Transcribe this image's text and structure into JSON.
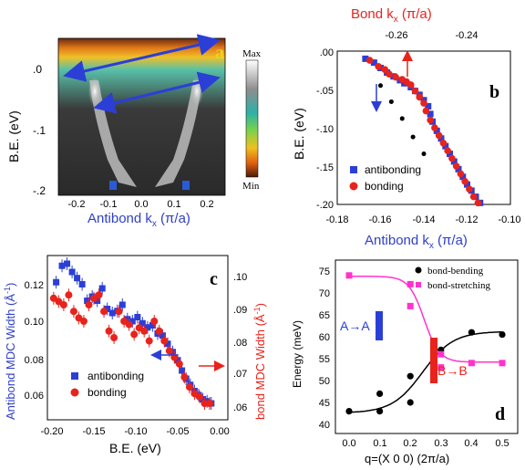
{
  "colors": {
    "blue": "#2b3fd6",
    "red": "#e8231c",
    "black": "#000000",
    "magenta": "#ff33cc",
    "axis_blue": "#2f3fc8",
    "axis_red": "#e8231c"
  },
  "panel_a": {
    "label": "a",
    "ylabel": "B.E. (eV)",
    "xlabel": "Antibond k",
    "xlabel_sub": "x",
    "xlabel_unit": " (π/a)",
    "xticks": [
      "-0.2",
      "-0.1",
      "0.0",
      "0.1",
      "0.2"
    ],
    "yticks": [
      ".0",
      "-.1",
      "-.2"
    ],
    "colorbar_max": "Max",
    "colorbar_min": "Min"
  },
  "panel_b": {
    "label": "b",
    "ylabel": "B.E. (eV)",
    "xlabel": "Antibond k",
    "xlabel_sub": "x",
    "xlabel_unit": " (π/a)",
    "top_label": "Bond k",
    "top_label_sub": "x",
    "top_label_unit": " (π/a)",
    "xticks": [
      "-0.18",
      "-0.16",
      "-0.14",
      "-0.12",
      "-0.10"
    ],
    "yticks": [
      ".00",
      "-.05",
      "-.10",
      "-.15",
      "-.20"
    ],
    "top_ticks": [
      "-0.26",
      "-0.24"
    ],
    "legend": [
      "antibonding",
      "bonding"
    ]
  },
  "panel_c": {
    "label": "c",
    "ylabel_left": "Antibond MDC Width (Å",
    "ylabel_left_sup": "-1",
    "ylabel_right": "bond MDC Width (Å",
    "ylabel_right_sup": "-1",
    "xlabel": "B.E. (eV)",
    "xticks": [
      "-0.20",
      "-0.15",
      "-0.10",
      "-0.05",
      "0.00"
    ],
    "yticks_left": [
      "0.12",
      "0.10",
      "0.08",
      "0.06"
    ],
    "yticks_right": [
      ".10",
      ".09",
      ".08",
      ".07",
      ".06"
    ],
    "legend": [
      "antibonding",
      "bonding"
    ]
  },
  "panel_d": {
    "label": "d",
    "ylabel": "Energy (meV)",
    "xlabel": "q=(X 0 0) (2π/a)",
    "xticks": [
      "0.0",
      "0.1",
      "0.2",
      "0.3",
      "0.4",
      "0.5"
    ],
    "yticks": [
      "75",
      "70",
      "65",
      "60",
      "55",
      "50",
      "45",
      "40"
    ],
    "legend": [
      "bond-bending",
      "bond-stretching"
    ],
    "annot_aa": "A→A",
    "annot_bb": "B→B"
  },
  "chart_data": [
    {
      "type": "heatmap",
      "panel": "a",
      "xlim": [
        -0.25,
        0.25
      ],
      "ylim": [
        -0.2,
        0.03
      ]
    },
    {
      "type": "scatter",
      "panel": "b",
      "xlim": [
        -0.18,
        -0.1
      ],
      "ylim": [
        -0.2,
        0.0
      ],
      "series": [
        {
          "name": "antibonding",
          "x": [
            -0.167,
            -0.163,
            -0.16,
            -0.157,
            -0.154,
            -0.151,
            -0.149,
            -0.146,
            -0.144,
            -0.142,
            -0.14,
            -0.138,
            -0.137,
            -0.136,
            -0.134,
            -0.132,
            -0.13,
            -0.128,
            -0.126,
            -0.124,
            -0.122,
            -0.12,
            -0.118,
            -0.116,
            -0.114
          ],
          "y": [
            -0.01,
            -0.015,
            -0.022,
            -0.028,
            -0.033,
            -0.038,
            -0.042,
            -0.047,
            -0.052,
            -0.057,
            -0.064,
            -0.072,
            -0.082,
            -0.092,
            -0.104,
            -0.114,
            -0.124,
            -0.134,
            -0.144,
            -0.154,
            -0.164,
            -0.174,
            -0.182,
            -0.19,
            -0.198
          ]
        },
        {
          "name": "bonding",
          "x": [
            -0.165,
            -0.161,
            -0.158,
            -0.156,
            -0.153,
            -0.15,
            -0.148,
            -0.146,
            -0.144,
            -0.142,
            -0.14,
            -0.139,
            -0.137,
            -0.135,
            -0.133,
            -0.131,
            -0.129,
            -0.127,
            -0.125,
            -0.123,
            -0.121,
            -0.119,
            -0.117,
            -0.115
          ],
          "y": [
            -0.012,
            -0.02,
            -0.024,
            -0.03,
            -0.034,
            -0.037,
            -0.04,
            -0.044,
            -0.052,
            -0.06,
            -0.068,
            -0.078,
            -0.09,
            -0.1,
            -0.11,
            -0.12,
            -0.13,
            -0.14,
            -0.15,
            -0.16,
            -0.17,
            -0.18,
            -0.19,
            -0.198
          ]
        },
        {
          "name": "",
          "x": [
            -0.16,
            -0.155,
            -0.15,
            -0.145,
            -0.14
          ],
          "y": [
            -0.045,
            -0.066,
            -0.088,
            -0.112,
            -0.134
          ]
        }
      ]
    },
    {
      "type": "scatter",
      "panel": "c",
      "xlim": [
        -0.2,
        0.0
      ],
      "ylim_left": [
        0.05,
        0.13
      ],
      "ylim_right": [
        0.055,
        0.105
      ],
      "series": [
        {
          "name": "antibonding",
          "axis": "left",
          "x": [
            -0.195,
            -0.188,
            -0.182,
            -0.176,
            -0.17,
            -0.164,
            -0.158,
            -0.152,
            -0.146,
            -0.14,
            -0.134,
            -0.128,
            -0.122,
            -0.116,
            -0.11,
            -0.104,
            -0.098,
            -0.092,
            -0.086,
            -0.08,
            -0.074,
            -0.068,
            -0.062,
            -0.056,
            -0.05,
            -0.045,
            -0.04,
            -0.035,
            -0.03,
            -0.025,
            -0.02,
            -0.015,
            -0.01
          ],
          "y": [
            0.117,
            0.125,
            0.126,
            0.122,
            0.119,
            0.116,
            0.108,
            0.11,
            0.108,
            0.114,
            0.104,
            0.102,
            0.103,
            0.106,
            0.099,
            0.098,
            0.1,
            0.097,
            0.095,
            0.096,
            0.092,
            0.091,
            0.087,
            0.083,
            0.079,
            0.074,
            0.07,
            0.067,
            0.064,
            0.062,
            0.06,
            0.059,
            0.058
          ]
        },
        {
          "name": "bonding",
          "axis": "right",
          "x": [
            -0.198,
            -0.192,
            -0.186,
            -0.18,
            -0.174,
            -0.168,
            -0.162,
            -0.156,
            -0.15,
            -0.144,
            -0.138,
            -0.132,
            -0.126,
            -0.12,
            -0.114,
            -0.108,
            -0.102,
            -0.096,
            -0.09,
            -0.084,
            -0.078,
            -0.072,
            -0.066,
            -0.06,
            -0.054,
            -0.048,
            -0.042,
            -0.036,
            -0.03,
            -0.024,
            -0.018,
            -0.012
          ],
          "y": [
            0.092,
            0.091,
            0.09,
            0.093,
            0.088,
            0.086,
            0.085,
            0.09,
            0.092,
            0.093,
            0.088,
            0.082,
            0.08,
            0.088,
            0.085,
            0.084,
            0.081,
            0.083,
            0.082,
            0.079,
            0.085,
            0.082,
            0.079,
            0.076,
            0.074,
            0.072,
            0.068,
            0.065,
            0.063,
            0.062,
            0.06,
            0.06
          ]
        }
      ]
    },
    {
      "type": "line",
      "panel": "d",
      "xlim": [
        -0.03,
        0.52
      ],
      "ylim": [
        40,
        77
      ],
      "series": [
        {
          "name": "bond-bending",
          "x": [
            0.0,
            0.1,
            0.1,
            0.2,
            0.2,
            0.3,
            0.4,
            0.5
          ],
          "y": [
            43,
            47,
            43,
            51,
            45,
            57,
            61,
            60.5
          ]
        },
        {
          "name": "bond-stretching",
          "x": [
            0.0,
            0.2,
            0.2,
            0.3,
            0.3,
            0.4,
            0.5
          ],
          "y": [
            74,
            72,
            67,
            56,
            53,
            54,
            54
          ]
        }
      ]
    }
  ]
}
